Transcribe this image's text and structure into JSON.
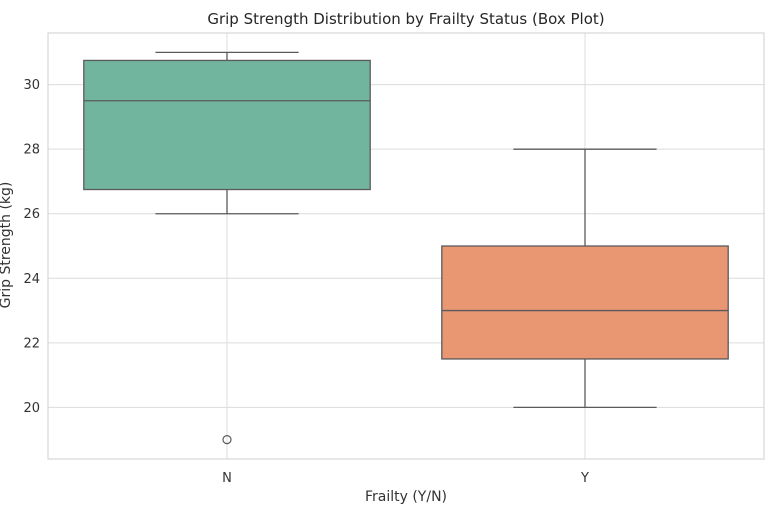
{
  "chart_data": {
    "type": "box",
    "title": "Grip Strength Distribution by Frailty Status (Box Plot)",
    "xlabel": "Frailty (Y/N)",
    "ylabel": "Grip Strength (kg)",
    "ylim": [
      18.4,
      31.6
    ],
    "yticks": [
      20,
      22,
      24,
      26,
      28,
      30
    ],
    "grid": true,
    "categories": [
      "N",
      "Y"
    ],
    "boxes": [
      {
        "category": "N",
        "whisker_low": 26.0,
        "q1": 26.75,
        "median": 29.5,
        "q3": 30.75,
        "whisker_high": 31.0,
        "outliers": [
          19.0
        ],
        "color": "#72b59f"
      },
      {
        "category": "Y",
        "whisker_low": 20.0,
        "q1": 21.5,
        "median": 23.0,
        "q3": 25.0,
        "whisker_high": 28.0,
        "outliers": [],
        "color": "#e99673"
      }
    ],
    "line_color": "#5a5a5a",
    "grid_color": "#dcdcdc"
  }
}
